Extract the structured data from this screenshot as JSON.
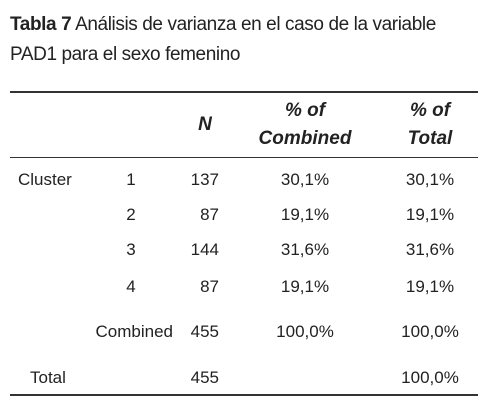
{
  "caption": {
    "label": "Tabla 7",
    "text": "Análisis de varianza en el caso de la variable PAD1 para el sexo femenino"
  },
  "table": {
    "header": {
      "n": "N",
      "pct_combined": "% of Combined",
      "pct_total": "% of Total"
    },
    "rows": [
      {
        "group": "Cluster",
        "label": "1",
        "n": 137,
        "pct_combined": "30,1%",
        "pct_total": "30,1%"
      },
      {
        "label": "2",
        "n": 87,
        "pct_combined": "19,1%",
        "pct_total": "19,1%"
      },
      {
        "label": "3",
        "n": 144,
        "pct_combined": "31,6%",
        "pct_total": "31,6%"
      },
      {
        "label": "4",
        "n": 87,
        "pct_combined": "19,1%",
        "pct_total": "19,1%"
      },
      {
        "label": "Combined",
        "n": 455,
        "pct_combined": "100,0%",
        "pct_total": "100,0%"
      },
      {
        "group": "Total",
        "n": 455,
        "pct_total": "100,0%"
      }
    ]
  }
}
